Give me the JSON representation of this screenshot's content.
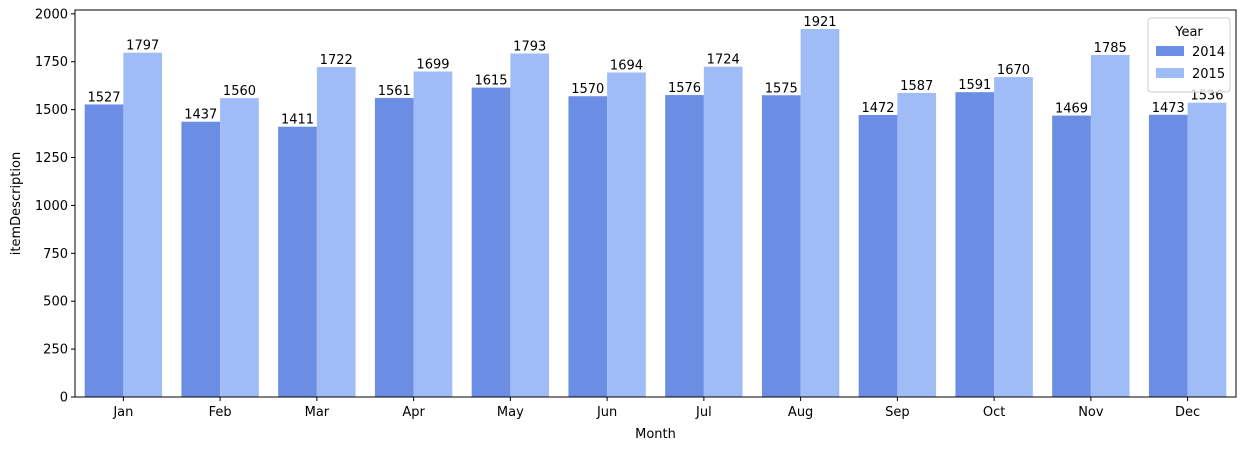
{
  "chart_data": {
    "type": "bar",
    "xlabel": "Month",
    "ylabel": "itemDescription",
    "categories": [
      "Jan",
      "Feb",
      "Mar",
      "Apr",
      "May",
      "Jun",
      "Jul",
      "Aug",
      "Sep",
      "Oct",
      "Nov",
      "Dec"
    ],
    "series": [
      {
        "name": "2014",
        "color": "#6c8de4",
        "values": [
          1527,
          1437,
          1411,
          1561,
          1615,
          1570,
          1576,
          1575,
          1472,
          1591,
          1469,
          1473
        ]
      },
      {
        "name": "2015",
        "color": "#9fbcf7",
        "values": [
          1797,
          1560,
          1722,
          1699,
          1793,
          1694,
          1724,
          1921,
          1587,
          1670,
          1785,
          1536
        ]
      }
    ],
    "ylim": [
      0,
      2020
    ],
    "yticks": [
      "0",
      "250",
      "500",
      "750",
      "1000",
      "1250",
      "1500",
      "1750",
      "2000"
    ],
    "grid": false,
    "legend": {
      "title": "Year",
      "placement": "top-right"
    },
    "data_labels": true
  }
}
